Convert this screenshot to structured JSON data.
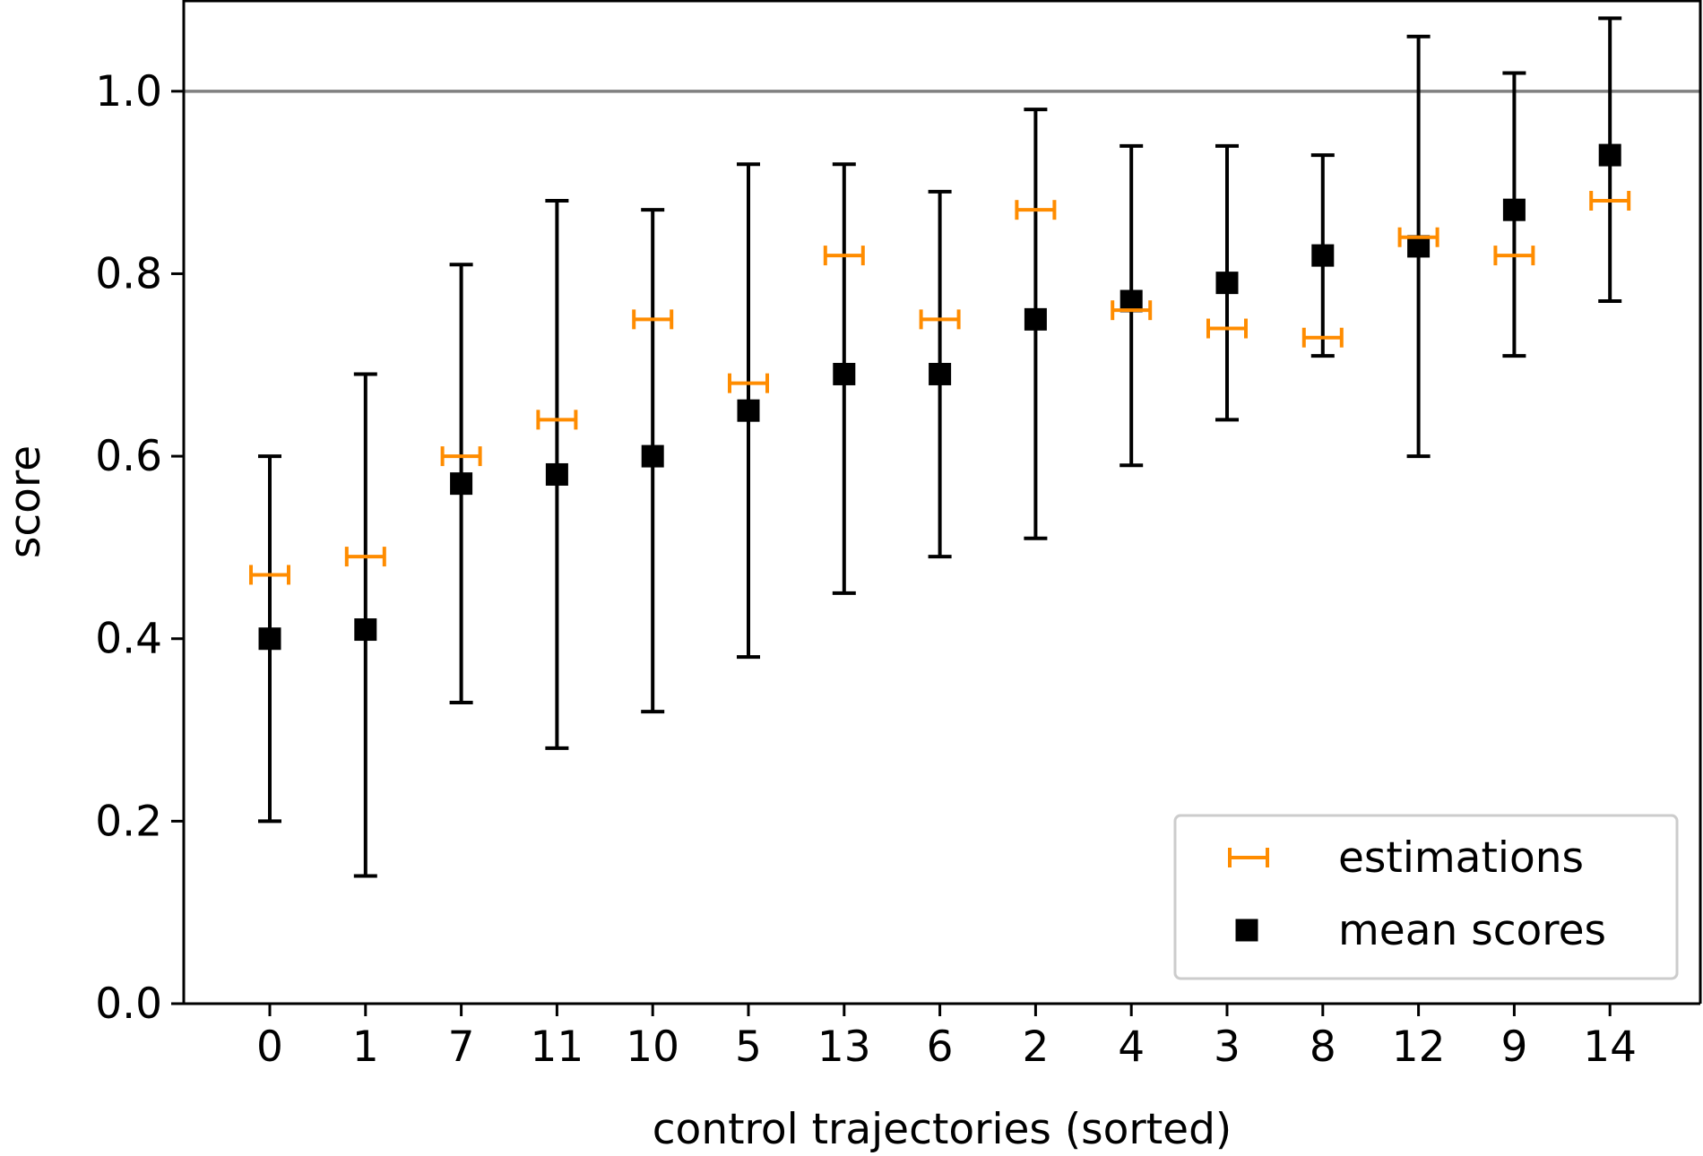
{
  "chart_data": {
    "type": "scatter",
    "title": "",
    "xlabel": "control trajectories (sorted)",
    "ylabel": "score",
    "categories": [
      "0",
      "1",
      "7",
      "11",
      "10",
      "5",
      "13",
      "6",
      "2",
      "4",
      "3",
      "8",
      "12",
      "9",
      "14"
    ],
    "ylim": [
      0.0,
      1.1
    ],
    "yticks": [
      "0.0",
      "0.2",
      "0.4",
      "0.6",
      "0.8",
      "1.0"
    ],
    "reference_line": {
      "y": 1.0,
      "color": "#808080"
    },
    "grid": false,
    "legend_position": "lower right",
    "series": [
      {
        "name": "estimations",
        "marker": "tri-x",
        "color": "#ff8c00",
        "values": [
          0.47,
          0.49,
          0.6,
          0.64,
          0.75,
          0.68,
          0.82,
          0.75,
          0.87,
          0.76,
          0.74,
          0.73,
          0.84,
          0.82,
          0.88
        ]
      },
      {
        "name": "mean scores",
        "marker": "square",
        "color": "#000000",
        "values": [
          0.4,
          0.41,
          0.57,
          0.58,
          0.6,
          0.65,
          0.69,
          0.69,
          0.75,
          0.77,
          0.79,
          0.82,
          0.83,
          0.87,
          0.93
        ],
        "err_low": [
          0.2,
          0.14,
          0.33,
          0.28,
          0.32,
          0.38,
          0.45,
          0.49,
          0.51,
          0.59,
          0.64,
          0.71,
          0.6,
          0.71,
          0.77
        ],
        "err_high": [
          0.6,
          0.69,
          0.81,
          0.88,
          0.87,
          0.92,
          0.92,
          0.89,
          0.98,
          0.94,
          0.94,
          0.93,
          1.06,
          1.02,
          1.08
        ]
      }
    ]
  }
}
